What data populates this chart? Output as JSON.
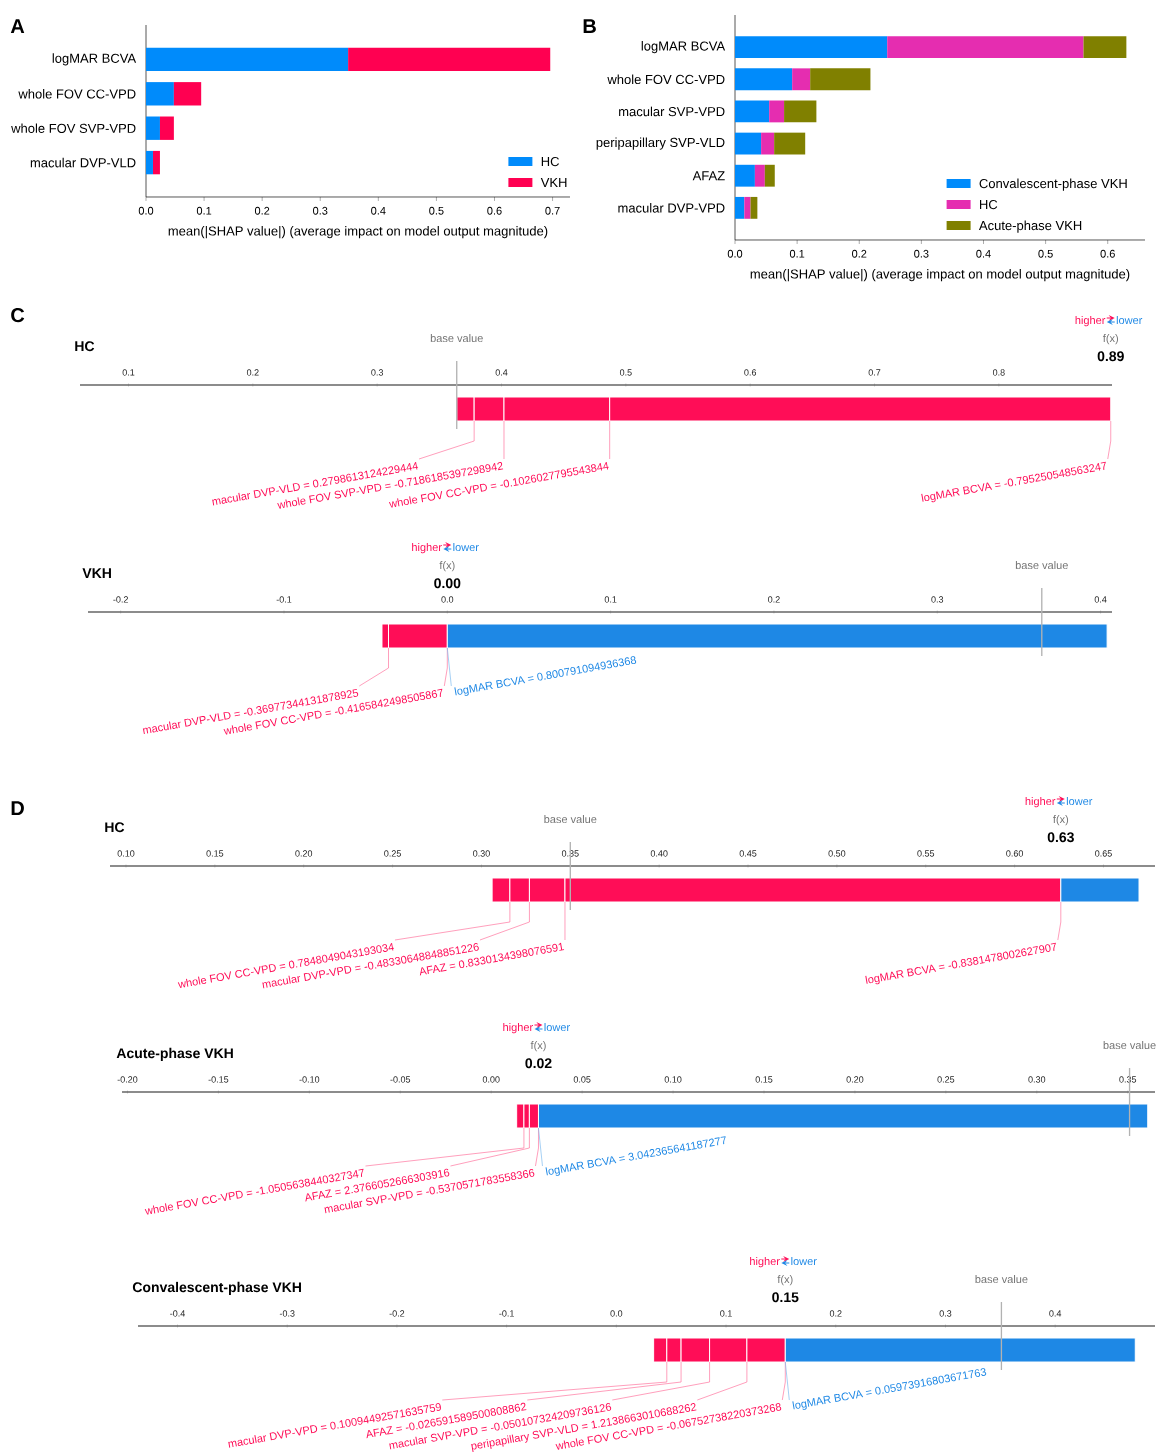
{
  "chart_data": [
    {
      "type": "bar",
      "orientation": "horizontal",
      "stacked": true,
      "categories": [
        "logMAR BCVA",
        "whole FOV CC-VPD",
        "whole FOV SVP-VPD",
        "macular DVP-VLD"
      ],
      "series": [
        {
          "name": "HC",
          "color": "#008bfb",
          "values": [
            0.348,
            0.048,
            0.024,
            0.012
          ]
        },
        {
          "name": "VKH",
          "color": "#ff0051",
          "values": [
            0.348,
            0.047,
            0.024,
            0.012
          ]
        }
      ],
      "xlim": [
        0,
        0.73
      ],
      "xticks": [
        {
          "value": 0,
          "label": "0.0"
        },
        0.1,
        0.2,
        0.3,
        0.4,
        0.5,
        0.6,
        0.7
      ],
      "xlabel": "mean(|SHAP value|) (average impact on model output magnitude)",
      "legend": "bottom right",
      "annotations": [
        "A"
      ]
    },
    {
      "type": "bar",
      "orientation": "horizontal",
      "stacked": true,
      "categories": [
        "logMAR BCVA",
        "whole FOV CC-VPD",
        "macular SVP-VPD",
        "peripapillary SVP-VLD",
        "AFAZ",
        "macular DVP-VPD"
      ],
      "series": [
        {
          "name": "Convalescent-phase VKH",
          "color": "#008bfb",
          "values": [
            0.245,
            0.092,
            0.055,
            0.042,
            0.032,
            0.015
          ]
        },
        {
          "name": "HC",
          "color": "#e52db0",
          "values": [
            0.316,
            0.029,
            0.024,
            0.021,
            0.016,
            0.01
          ]
        },
        {
          "name": "Acute-phase VKH",
          "color": "#808000",
          "values": [
            0.069,
            0.097,
            0.052,
            0.05,
            0.016,
            0.011
          ]
        }
      ],
      "xlim": [
        0,
        0.66
      ],
      "xticks": [
        {
          "value": 0,
          "label": "0.0"
        },
        0.1,
        0.2,
        0.3,
        0.4,
        0.5,
        0.6
      ],
      "xlabel": "mean(|SHAP value|) (average impact on model output magnitude)",
      "legend": "bottom right",
      "annotations": [
        "B"
      ]
    },
    {
      "type": "bar",
      "orientation": "horizontal",
      "title": "HC",
      "categories": [
        null
      ],
      "tick_labels": "x",
      "xlim": [
        0.061,
        0.891
      ],
      "xticks": [
        0.1,
        0.2,
        0.3,
        0.4,
        0.5,
        0.6,
        0.7,
        0.8
      ],
      "ref_lines": [
        {
          "axis": "x",
          "value": 0.364,
          "label": "base value"
        }
      ],
      "annotations": [
        "f(x)",
        "0.89",
        "higher",
        "lower",
        "C"
      ],
      "series": [
        {
          "name": "macular DVP-VLD = 0.2798613124229444",
          "color": "#ff0d57",
          "base": [
            0.364
          ],
          "values": [
            0.014
          ]
        },
        {
          "name": "whole FOV SVP-VPD = -0.7186185397298942",
          "color": "#ff0d57",
          "base": [
            0.378
          ],
          "values": [
            0.024
          ]
        },
        {
          "name": "whole FOV CC-VPD = -0.1026027795543844",
          "color": "#ff0d57",
          "base": [
            0.402
          ],
          "values": [
            0.085
          ]
        },
        {
          "name": "logMAR BCVA = -0.795250548563247",
          "color": "#ff0d57",
          "base": [
            0.487
          ],
          "values": [
            0.403
          ]
        }
      ]
    },
    {
      "type": "bar",
      "orientation": "horizontal",
      "title": "VKH",
      "categories": [
        null
      ],
      "tick_labels": "x",
      "xlim": [
        -0.22,
        0.407
      ],
      "xticks": [
        -0.2,
        -0.1,
        {
          "value": 0,
          "label": "0.0"
        },
        0.1,
        0.2,
        0.3,
        0.4
      ],
      "ref_lines": [
        {
          "axis": "x",
          "value": 0.364,
          "label": "base value"
        }
      ],
      "annotations": [
        "f(x)",
        "0.00",
        "higher",
        "lower"
      ],
      "series": [
        {
          "name": "macular DVP-VLD = -0.36977344131878925",
          "color": "#ff0d57",
          "base": [
            -0.04
          ],
          "values": [
            0.004
          ]
        },
        {
          "name": "whole FOV CC-VPD = -0.4165842498505867",
          "color": "#ff0d57",
          "base": [
            -0.036
          ],
          "values": [
            0.036
          ]
        },
        {
          "name": "logMAR BCVA = 0.800791094936368",
          "color": "#1e88e5",
          "base": [
            0.0
          ],
          "values": [
            0.404
          ]
        }
      ]
    },
    {
      "type": "bar",
      "orientation": "horizontal",
      "title": "HC",
      "categories": [
        null
      ],
      "tick_labels": "x",
      "xlim": [
        0.091,
        0.679
      ],
      "xticks": [
        {
          "value": 0.1,
          "label": "0.10"
        },
        0.15,
        {
          "value": 0.2,
          "label": "0.20"
        },
        0.25,
        {
          "value": 0.3,
          "label": "0.30"
        },
        0.35,
        {
          "value": 0.4,
          "label": "0.40"
        },
        0.45,
        {
          "value": 0.5,
          "label": "0.50"
        },
        0.55,
        {
          "value": 0.6,
          "label": "0.60"
        },
        0.65
      ],
      "ref_lines": [
        {
          "axis": "x",
          "value": 0.35,
          "label": "base value"
        }
      ],
      "annotations": [
        "f(x)",
        "0.63",
        "higher",
        "lower",
        "D"
      ],
      "series": [
        {
          "name": "whole FOV CC-VPD = 0.7848049043193034",
          "color": "#ff0d57",
          "base": [
            0.306
          ],
          "values": [
            0.01
          ]
        },
        {
          "name": "macular DVP-VPD = -0.48330648848851226",
          "color": "#ff0d57",
          "base": [
            0.316
          ],
          "values": [
            0.011
          ]
        },
        {
          "name": "AFAZ = 0.8330134398076591",
          "color": "#ff0d57",
          "base": [
            0.327
          ],
          "values": [
            0.02
          ]
        },
        {
          "name": "logMAR BCVA = -0.8381478002627907",
          "color": "#ff0d57",
          "base": [
            0.347
          ],
          "values": [
            0.279
          ]
        },
        {
          "color": "#1e88e5",
          "base": [
            0.626
          ],
          "values": [
            0.044
          ]
        }
      ]
    },
    {
      "type": "bar",
      "orientation": "horizontal",
      "title": "Acute-phase VKH",
      "categories": [
        null
      ],
      "tick_labels": "x",
      "xlim": [
        -0.203,
        0.365
      ],
      "xticks": [
        {
          "value": -0.2,
          "label": "-0.20"
        },
        -0.15,
        {
          "value": -0.1,
          "label": "-0.10"
        },
        -0.05,
        {
          "value": 0,
          "label": "0.00"
        },
        0.05,
        {
          "value": 0.1,
          "label": "0.10"
        },
        0.15,
        {
          "value": 0.2,
          "label": "0.20"
        },
        0.25,
        {
          "value": 0.3,
          "label": "0.30"
        },
        0.35
      ],
      "ref_lines": [
        {
          "axis": "x",
          "value": 0.351,
          "label": "base value"
        }
      ],
      "annotations": [
        "f(x)",
        "0.02",
        "higher",
        "lower"
      ],
      "series": [
        {
          "name": "whole FOV CC-VPD = -1.0505638440327347",
          "color": "#ff0d57",
          "base": [
            0.014
          ],
          "values": [
            0.004
          ]
        },
        {
          "name": "AFAZ = 2.3766052666303916",
          "color": "#ff0d57",
          "base": [
            0.018
          ],
          "values": [
            0.003
          ]
        },
        {
          "name": "macular SVP-VPD = -0.5370571783558366",
          "color": "#ff0d57",
          "base": [
            0.021
          ],
          "values": [
            0.005
          ]
        },
        {
          "name": "logMAR BCVA = 3.042365641187277",
          "color": "#1e88e5",
          "base": [
            0.026
          ],
          "values": [
            0.335
          ]
        }
      ]
    },
    {
      "type": "bar",
      "orientation": "horizontal",
      "title": "Convalescent-phase VKH",
      "categories": [
        null
      ],
      "tick_labels": "x",
      "xlim": [
        -0.436,
        0.491
      ],
      "xticks": [
        -0.4,
        -0.3,
        -0.2,
        -0.1,
        {
          "value": 0,
          "label": "0.0"
        },
        0.1,
        0.2,
        0.3,
        0.4
      ],
      "ref_lines": [
        {
          "axis": "x",
          "value": 0.351,
          "label": "base value"
        }
      ],
      "annotations": [
        "f(x)",
        "0.15",
        "higher",
        "lower"
      ],
      "series": [
        {
          "name": "macular DVP-VPD = 0.10094492571635759",
          "color": "#ff0d57",
          "base": [
            0.034
          ],
          "values": [
            0.012
          ]
        },
        {
          "name": "AFAZ = -0.026591589500808862",
          "color": "#ff0d57",
          "base": [
            0.046
          ],
          "values": [
            0.013
          ]
        },
        {
          "name": "macular SVP-VPD = -0.050107324209736126",
          "color": "#ff0d57",
          "base": [
            0.059
          ],
          "values": [
            0.026
          ]
        },
        {
          "name": "peripapillary SVP-VLD = 1.2138663010688262",
          "color": "#ff0d57",
          "base": [
            0.085
          ],
          "values": [
            0.034
          ]
        },
        {
          "name": "whole FOV CC-VPD = -0.06752738220373268",
          "color": "#ff0d57",
          "base": [
            0.119
          ],
          "values": [
            0.035
          ]
        },
        {
          "name": "logMAR BCVA = 0.05973916803671763",
          "color": "#1e88e5",
          "base": [
            0.154
          ],
          "values": [
            0.319
          ]
        }
      ]
    }
  ]
}
